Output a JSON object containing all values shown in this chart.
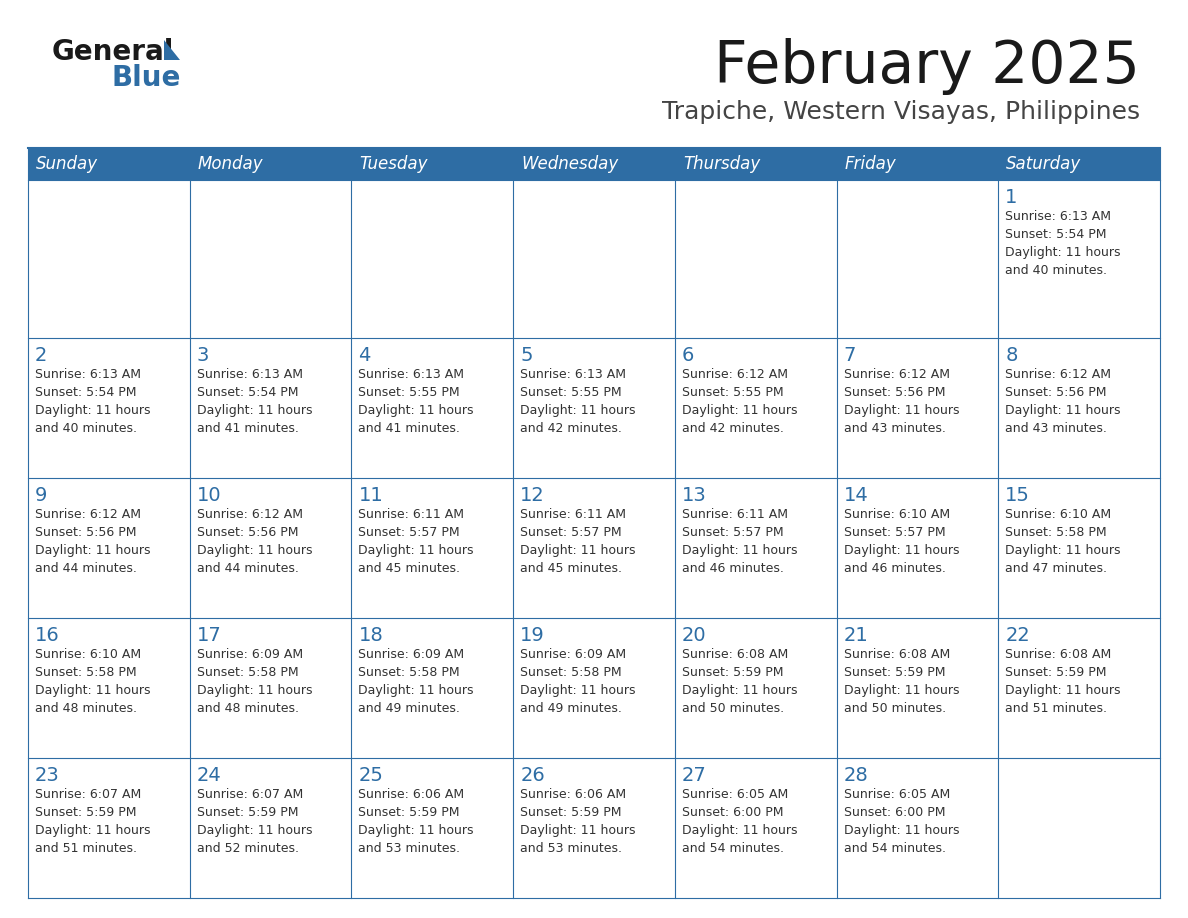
{
  "title": "February 2025",
  "subtitle": "Trapiche, Western Visayas, Philippines",
  "header_bg": "#2E6DA4",
  "header_text_color": "#FFFFFF",
  "cell_bg": "#FFFFFF",
  "day_number_color": "#2E6DA4",
  "cell_text_color": "#333333",
  "border_color": "#2E6DA4",
  "weekdays": [
    "Sunday",
    "Monday",
    "Tuesday",
    "Wednesday",
    "Thursday",
    "Friday",
    "Saturday"
  ],
  "weeks": [
    [
      {
        "day": "",
        "sunrise": "",
        "sunset": "",
        "daylight": ""
      },
      {
        "day": "",
        "sunrise": "",
        "sunset": "",
        "daylight": ""
      },
      {
        "day": "",
        "sunrise": "",
        "sunset": "",
        "daylight": ""
      },
      {
        "day": "",
        "sunrise": "",
        "sunset": "",
        "daylight": ""
      },
      {
        "day": "",
        "sunrise": "",
        "sunset": "",
        "daylight": ""
      },
      {
        "day": "",
        "sunrise": "",
        "sunset": "",
        "daylight": ""
      },
      {
        "day": "1",
        "sunrise": "6:13 AM",
        "sunset": "5:54 PM",
        "daylight": "11 hours and 40 minutes."
      }
    ],
    [
      {
        "day": "2",
        "sunrise": "6:13 AM",
        "sunset": "5:54 PM",
        "daylight": "11 hours and 40 minutes."
      },
      {
        "day": "3",
        "sunrise": "6:13 AM",
        "sunset": "5:54 PM",
        "daylight": "11 hours and 41 minutes."
      },
      {
        "day": "4",
        "sunrise": "6:13 AM",
        "sunset": "5:55 PM",
        "daylight": "11 hours and 41 minutes."
      },
      {
        "day": "5",
        "sunrise": "6:13 AM",
        "sunset": "5:55 PM",
        "daylight": "11 hours and 42 minutes."
      },
      {
        "day": "6",
        "sunrise": "6:12 AM",
        "sunset": "5:55 PM",
        "daylight": "11 hours and 42 minutes."
      },
      {
        "day": "7",
        "sunrise": "6:12 AM",
        "sunset": "5:56 PM",
        "daylight": "11 hours and 43 minutes."
      },
      {
        "day": "8",
        "sunrise": "6:12 AM",
        "sunset": "5:56 PM",
        "daylight": "11 hours and 43 minutes."
      }
    ],
    [
      {
        "day": "9",
        "sunrise": "6:12 AM",
        "sunset": "5:56 PM",
        "daylight": "11 hours and 44 minutes."
      },
      {
        "day": "10",
        "sunrise": "6:12 AM",
        "sunset": "5:56 PM",
        "daylight": "11 hours and 44 minutes."
      },
      {
        "day": "11",
        "sunrise": "6:11 AM",
        "sunset": "5:57 PM",
        "daylight": "11 hours and 45 minutes."
      },
      {
        "day": "12",
        "sunrise": "6:11 AM",
        "sunset": "5:57 PM",
        "daylight": "11 hours and 45 minutes."
      },
      {
        "day": "13",
        "sunrise": "6:11 AM",
        "sunset": "5:57 PM",
        "daylight": "11 hours and 46 minutes."
      },
      {
        "day": "14",
        "sunrise": "6:10 AM",
        "sunset": "5:57 PM",
        "daylight": "11 hours and 46 minutes."
      },
      {
        "day": "15",
        "sunrise": "6:10 AM",
        "sunset": "5:58 PM",
        "daylight": "11 hours and 47 minutes."
      }
    ],
    [
      {
        "day": "16",
        "sunrise": "6:10 AM",
        "sunset": "5:58 PM",
        "daylight": "11 hours and 48 minutes."
      },
      {
        "day": "17",
        "sunrise": "6:09 AM",
        "sunset": "5:58 PM",
        "daylight": "11 hours and 48 minutes."
      },
      {
        "day": "18",
        "sunrise": "6:09 AM",
        "sunset": "5:58 PM",
        "daylight": "11 hours and 49 minutes."
      },
      {
        "day": "19",
        "sunrise": "6:09 AM",
        "sunset": "5:58 PM",
        "daylight": "11 hours and 49 minutes."
      },
      {
        "day": "20",
        "sunrise": "6:08 AM",
        "sunset": "5:59 PM",
        "daylight": "11 hours and 50 minutes."
      },
      {
        "day": "21",
        "sunrise": "6:08 AM",
        "sunset": "5:59 PM",
        "daylight": "11 hours and 50 minutes."
      },
      {
        "day": "22",
        "sunrise": "6:08 AM",
        "sunset": "5:59 PM",
        "daylight": "11 hours and 51 minutes."
      }
    ],
    [
      {
        "day": "23",
        "sunrise": "6:07 AM",
        "sunset": "5:59 PM",
        "daylight": "11 hours and 51 minutes."
      },
      {
        "day": "24",
        "sunrise": "6:07 AM",
        "sunset": "5:59 PM",
        "daylight": "11 hours and 52 minutes."
      },
      {
        "day": "25",
        "sunrise": "6:06 AM",
        "sunset": "5:59 PM",
        "daylight": "11 hours and 53 minutes."
      },
      {
        "day": "26",
        "sunrise": "6:06 AM",
        "sunset": "5:59 PM",
        "daylight": "11 hours and 53 minutes."
      },
      {
        "day": "27",
        "sunrise": "6:05 AM",
        "sunset": "6:00 PM",
        "daylight": "11 hours and 54 minutes."
      },
      {
        "day": "28",
        "sunrise": "6:05 AM",
        "sunset": "6:00 PM",
        "daylight": "11 hours and 54 minutes."
      },
      {
        "day": "",
        "sunrise": "",
        "sunset": "",
        "daylight": ""
      }
    ]
  ]
}
